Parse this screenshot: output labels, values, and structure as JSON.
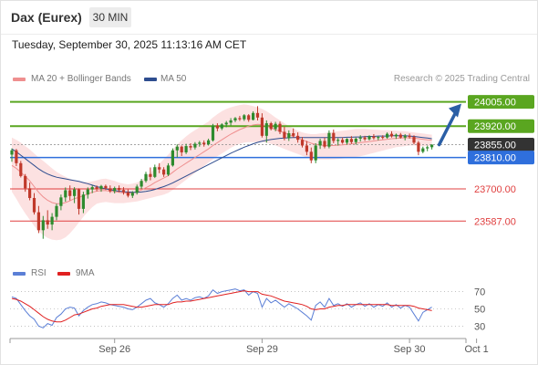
{
  "header": {
    "title": "Dax (Eurex)",
    "timeframe": "30 MIN"
  },
  "timestamp": "Tuesday, September 30, 2025 11:13:16 AM CET",
  "legend": {
    "ma20": {
      "label": "MA 20 + Bollinger Bands",
      "color": "#ef8f8f"
    },
    "ma50": {
      "label": "MA 50",
      "color": "#2e4d8f"
    },
    "rsi": {
      "label": "RSI",
      "color": "#5b7fd6"
    },
    "ma9": {
      "label": "9MA",
      "color": "#e02020"
    }
  },
  "credit": "Research © 2025 Trading Central",
  "chart_data": {
    "type": "candlestick",
    "price_axis": {
      "ylim": [
        23460,
        24055
      ]
    },
    "levels": [
      {
        "label": "24005.00",
        "value": 24005,
        "kind": "resistance",
        "color": "#5aa620"
      },
      {
        "label": "23920.00",
        "value": 23920,
        "kind": "resistance",
        "color": "#5aa620"
      },
      {
        "label": "23855.00",
        "value": 23855,
        "kind": "last",
        "color": "#333333"
      },
      {
        "label": "23810.00",
        "value": 23810,
        "kind": "pivot",
        "color": "#2f6fdc"
      },
      {
        "label": "23700.00",
        "value": 23700,
        "kind": "support",
        "color": "#e04040"
      },
      {
        "label": "23587.00",
        "value": 23587,
        "kind": "support",
        "color": "#e04040"
      }
    ],
    "forecast_arrow": {
      "from": 23855,
      "to": 24005
    },
    "x_ticks": [
      {
        "label": "Sep 26",
        "index": 23
      },
      {
        "label": "Sep 29",
        "index": 56
      },
      {
        "label": "Sep 30",
        "index": 89
      },
      {
        "label": "Oct 1",
        "index": 104
      }
    ],
    "candles": [
      [
        23820,
        23842,
        23795,
        23835
      ],
      [
        23835,
        23840,
        23780,
        23790
      ],
      [
        23790,
        23798,
        23740,
        23745
      ],
      [
        23745,
        23752,
        23690,
        23702
      ],
      [
        23702,
        23722,
        23660,
        23668
      ],
      [
        23668,
        23685,
        23610,
        23618
      ],
      [
        23618,
        23640,
        23545,
        23555
      ],
      [
        23555,
        23605,
        23525,
        23590
      ],
      [
        23590,
        23625,
        23560,
        23575
      ],
      [
        23575,
        23615,
        23555,
        23602
      ],
      [
        23602,
        23648,
        23590,
        23640
      ],
      [
        23640,
        23680,
        23625,
        23670
      ],
      [
        23670,
        23705,
        23655,
        23695
      ],
      [
        23695,
        23712,
        23660,
        23675
      ],
      [
        23675,
        23706,
        23650,
        23698
      ],
      [
        23698,
        23702,
        23610,
        23630
      ],
      [
        23630,
        23690,
        23615,
        23680
      ],
      [
        23680,
        23705,
        23666,
        23698
      ],
      [
        23698,
        23712,
        23685,
        23706
      ],
      [
        23706,
        23712,
        23692,
        23700
      ],
      [
        23700,
        23714,
        23690,
        23710
      ],
      [
        23710,
        23715,
        23696,
        23702
      ],
      [
        23702,
        23712,
        23686,
        23692
      ],
      [
        23692,
        23708,
        23684,
        23703
      ],
      [
        23703,
        23712,
        23688,
        23696
      ],
      [
        23696,
        23706,
        23680,
        23688
      ],
      [
        23688,
        23698,
        23670,
        23676
      ],
      [
        23676,
        23692,
        23668,
        23686
      ],
      [
        23686,
        23715,
        23680,
        23708
      ],
      [
        23708,
        23735,
        23700,
        23728
      ],
      [
        23728,
        23760,
        23722,
        23752
      ],
      [
        23752,
        23775,
        23730,
        23742
      ],
      [
        23742,
        23785,
        23738,
        23776
      ],
      [
        23776,
        23790,
        23755,
        23768
      ],
      [
        23768,
        23776,
        23742,
        23750
      ],
      [
        23750,
        23790,
        23745,
        23782
      ],
      [
        23782,
        23842,
        23778,
        23835
      ],
      [
        23835,
        23856,
        23810,
        23848
      ],
      [
        23848,
        23852,
        23815,
        23828
      ],
      [
        23828,
        23858,
        23822,
        23850
      ],
      [
        23850,
        23860,
        23836,
        23845
      ],
      [
        23845,
        23864,
        23838,
        23858
      ],
      [
        23858,
        23868,
        23848,
        23862
      ],
      [
        23862,
        23870,
        23848,
        23856
      ],
      [
        23856,
        23876,
        23852,
        23870
      ],
      [
        23870,
        23928,
        23866,
        23922
      ],
      [
        23922,
        23930,
        23902,
        23912
      ],
      [
        23912,
        23930,
        23906,
        23926
      ],
      [
        23926,
        23938,
        23916,
        23932
      ],
      [
        23932,
        23948,
        23922,
        23940
      ],
      [
        23940,
        23952,
        23934,
        23948
      ],
      [
        23948,
        23956,
        23938,
        23944
      ],
      [
        23944,
        23962,
        23938,
        23958
      ],
      [
        23958,
        23962,
        23935,
        23942
      ],
      [
        23942,
        23972,
        23940,
        23966
      ],
      [
        23966,
        23990,
        23940,
        23950
      ],
      [
        23950,
        23965,
        23880,
        23886
      ],
      [
        23886,
        23940,
        23862,
        23930
      ],
      [
        23930,
        23935,
        23905,
        23910
      ],
      [
        23910,
        23935,
        23902,
        23928
      ],
      [
        23928,
        23936,
        23892,
        23900
      ],
      [
        23900,
        23918,
        23870,
        23878
      ],
      [
        23878,
        23905,
        23868,
        23895
      ],
      [
        23895,
        23912,
        23880,
        23886
      ],
      [
        23886,
        23898,
        23862,
        23872
      ],
      [
        23872,
        23882,
        23845,
        23852
      ],
      [
        23852,
        23868,
        23818,
        23830
      ],
      [
        23830,
        23845,
        23790,
        23800
      ],
      [
        23800,
        23860,
        23790,
        23852
      ],
      [
        23852,
        23876,
        23840,
        23868
      ],
      [
        23868,
        23880,
        23842,
        23848
      ],
      [
        23848,
        23905,
        23842,
        23896
      ],
      [
        23896,
        23908,
        23860,
        23868
      ],
      [
        23868,
        23878,
        23852,
        23872
      ],
      [
        23872,
        23880,
        23858,
        23862
      ],
      [
        23862,
        23878,
        23855,
        23875
      ],
      [
        23875,
        23885,
        23858,
        23864
      ],
      [
        23864,
        23880,
        23855,
        23876
      ],
      [
        23876,
        23888,
        23866,
        23880
      ],
      [
        23880,
        23886,
        23868,
        23874
      ],
      [
        23874,
        23888,
        23870,
        23884
      ],
      [
        23884,
        23892,
        23872,
        23878
      ],
      [
        23878,
        23885,
        23870,
        23882
      ],
      [
        23882,
        23888,
        23874,
        23880
      ],
      [
        23880,
        23898,
        23876,
        23893
      ],
      [
        23893,
        23902,
        23880,
        23884
      ],
      [
        23884,
        23894,
        23875,
        23890
      ],
      [
        23890,
        23896,
        23876,
        23880
      ],
      [
        23880,
        23892,
        23870,
        23886
      ],
      [
        23886,
        23894,
        23876,
        23882
      ],
      [
        23882,
        23888,
        23856,
        23862
      ],
      [
        23862,
        23868,
        23818,
        23830
      ],
      [
        23830,
        23848,
        23825,
        23842
      ],
      [
        23842,
        23852,
        23832,
        23846
      ],
      [
        23846,
        23856,
        23838,
        23855
      ]
    ],
    "ma20": [
      23782,
      23772,
      23758,
      23744,
      23728,
      23708,
      23688,
      23672,
      23660,
      23652,
      23648,
      23648,
      23652,
      23658,
      23666,
      23670,
      23676,
      23682,
      23688,
      23692,
      23694,
      23694,
      23692,
      23690,
      23688,
      23686,
      23685,
      23686,
      23690,
      23696,
      23704,
      23712,
      23722,
      23730,
      23738,
      23746,
      23758,
      23770,
      23780,
      23790,
      23800,
      23810,
      23820,
      23830,
      23840,
      23852,
      23862,
      23872,
      23882,
      23892,
      23900,
      23908,
      23914,
      23920,
      23924,
      23926,
      23925,
      23920,
      23914,
      23908,
      23902,
      23896,
      23890,
      23884,
      23878,
      23872,
      23866,
      23860,
      23856,
      23854,
      23852,
      23852,
      23852,
      23853,
      23854,
      23856,
      23858,
      23860,
      23862,
      23864,
      23866,
      23868,
      23870,
      23872,
      23874,
      23876,
      23877,
      23878,
      23879,
      23879,
      23878,
      23876,
      23874,
      23872,
      23871
    ],
    "bb_upper": [
      23880,
      23872,
      23862,
      23850,
      23838,
      23824,
      23810,
      23798,
      23785,
      23772,
      23760,
      23750,
      23742,
      23735,
      23730,
      23726,
      23724,
      23724,
      23726,
      23730,
      23734,
      23736,
      23732,
      23728,
      23722,
      23718,
      23716,
      23718,
      23722,
      23730,
      23742,
      23756,
      23772,
      23788,
      23804,
      23820,
      23838,
      23855,
      23870,
      23884,
      23896,
      23906,
      23916,
      23926,
      23936,
      23950,
      23962,
      23972,
      23980,
      23986,
      23990,
      23994,
      23996,
      23994,
      23990,
      23986,
      23980,
      23972,
      23962,
      23950,
      23940,
      23930,
      23920,
      23912,
      23904,
      23898,
      23894,
      23892,
      23892,
      23894,
      23896,
      23898,
      23900,
      23902,
      23904,
      23906,
      23908,
      23910,
      23910,
      23910,
      23909,
      23908,
      23907,
      23906,
      23906,
      23905,
      23904,
      23903,
      23902,
      23900,
      23898,
      23896,
      23894,
      23892,
      23890
    ],
    "bb_lower": [
      23690,
      23665,
      23638,
      23614,
      23592,
      23570,
      23552,
      23538,
      23528,
      23522,
      23520,
      23522,
      23530,
      23544,
      23562,
      23582,
      23602,
      23620,
      23636,
      23648,
      23652,
      23654,
      23652,
      23650,
      23650,
      23650,
      23652,
      23654,
      23656,
      23660,
      23664,
      23668,
      23672,
      23676,
      23680,
      23686,
      23696,
      23708,
      23720,
      23732,
      23744,
      23756,
      23768,
      23780,
      23792,
      23804,
      23814,
      23824,
      23834,
      23844,
      23852,
      23858,
      23862,
      23864,
      23864,
      23864,
      23864,
      23862,
      23858,
      23852,
      23846,
      23840,
      23834,
      23828,
      23822,
      23816,
      23810,
      23806,
      23804,
      23803,
      23803,
      23803,
      23804,
      23805,
      23806,
      23808,
      23810,
      23812,
      23814,
      23818,
      23822,
      23826,
      23830,
      23834,
      23838,
      23842,
      23846,
      23848,
      23850,
      23852,
      23852,
      23851,
      23850,
      23850,
      23850
    ],
    "ma50": [
      23840,
      23830,
      23818,
      23806,
      23794,
      23782,
      23770,
      23760,
      23752,
      23746,
      23741,
      23738,
      23735,
      23732,
      23729,
      23726,
      23722,
      23718,
      23713,
      23708,
      23704,
      23700,
      23697,
      23694,
      23692,
      23690,
      23689,
      23688,
      23688,
      23689,
      23691,
      23694,
      23698,
      23703,
      23708,
      23714,
      23721,
      23729,
      23737,
      23745,
      23753,
      23761,
      23769,
      23777,
      23785,
      23793,
      23801,
      23809,
      23817,
      23825,
      23832,
      23839,
      23846,
      23852,
      23858,
      23863,
      23867,
      23870,
      23873,
      23875,
      23877,
      23878,
      23879,
      23880,
      23880,
      23880,
      23880,
      23880,
      23880,
      23880,
      23880,
      23880,
      23880,
      23880,
      23880,
      23881,
      23881,
      23882,
      23882,
      23883,
      23884,
      23884,
      23885,
      23885,
      23885,
      23886,
      23886,
      23886,
      23886,
      23885,
      23884,
      23882,
      23880,
      23878,
      23876
    ],
    "rsi_axis": {
      "ylim": [
        22,
        78
      ],
      "ticks": [
        70,
        50,
        30
      ]
    },
    "rsi": [
      64,
      62,
      55,
      48,
      42,
      38,
      30,
      28,
      33,
      31,
      40,
      44,
      50,
      52,
      51,
      42,
      48,
      52,
      55,
      56,
      58,
      57,
      55,
      54,
      53,
      52,
      50,
      49,
      52,
      56,
      60,
      62,
      57,
      55,
      52,
      56,
      62,
      66,
      60,
      62,
      60,
      63,
      64,
      62,
      65,
      72,
      68,
      70,
      71,
      72,
      73,
      71,
      72,
      66,
      70,
      68,
      52,
      62,
      57,
      60,
      56,
      52,
      56,
      53,
      50,
      46,
      42,
      37,
      54,
      58,
      52,
      62,
      54,
      56,
      53,
      56,
      52,
      55,
      57,
      53,
      56,
      52,
      55,
      53,
      57,
      52,
      55,
      51,
      54,
      52,
      44,
      36,
      46,
      49,
      52
    ],
    "rsi_ma9": [
      62,
      61,
      59,
      56,
      53,
      49,
      45,
      41,
      38,
      36,
      35,
      35,
      37,
      40,
      43,
      44,
      46,
      48,
      50,
      51,
      53,
      54,
      55,
      55,
      55,
      55,
      54,
      53,
      52,
      52,
      53,
      54,
      55,
      55,
      55,
      55,
      57,
      58,
      58,
      59,
      59,
      60,
      61,
      62,
      63,
      64,
      65,
      66,
      67,
      68,
      69,
      70,
      71,
      70,
      70,
      70,
      67,
      66,
      65,
      63,
      61,
      59,
      58,
      57,
      56,
      55,
      53,
      50,
      49,
      50,
      50,
      52,
      53,
      54,
      54,
      55,
      55,
      55,
      55,
      55,
      55,
      55,
      55,
      55,
      55,
      54,
      54,
      54,
      54,
      54,
      53,
      51,
      50,
      49,
      48
    ]
  }
}
